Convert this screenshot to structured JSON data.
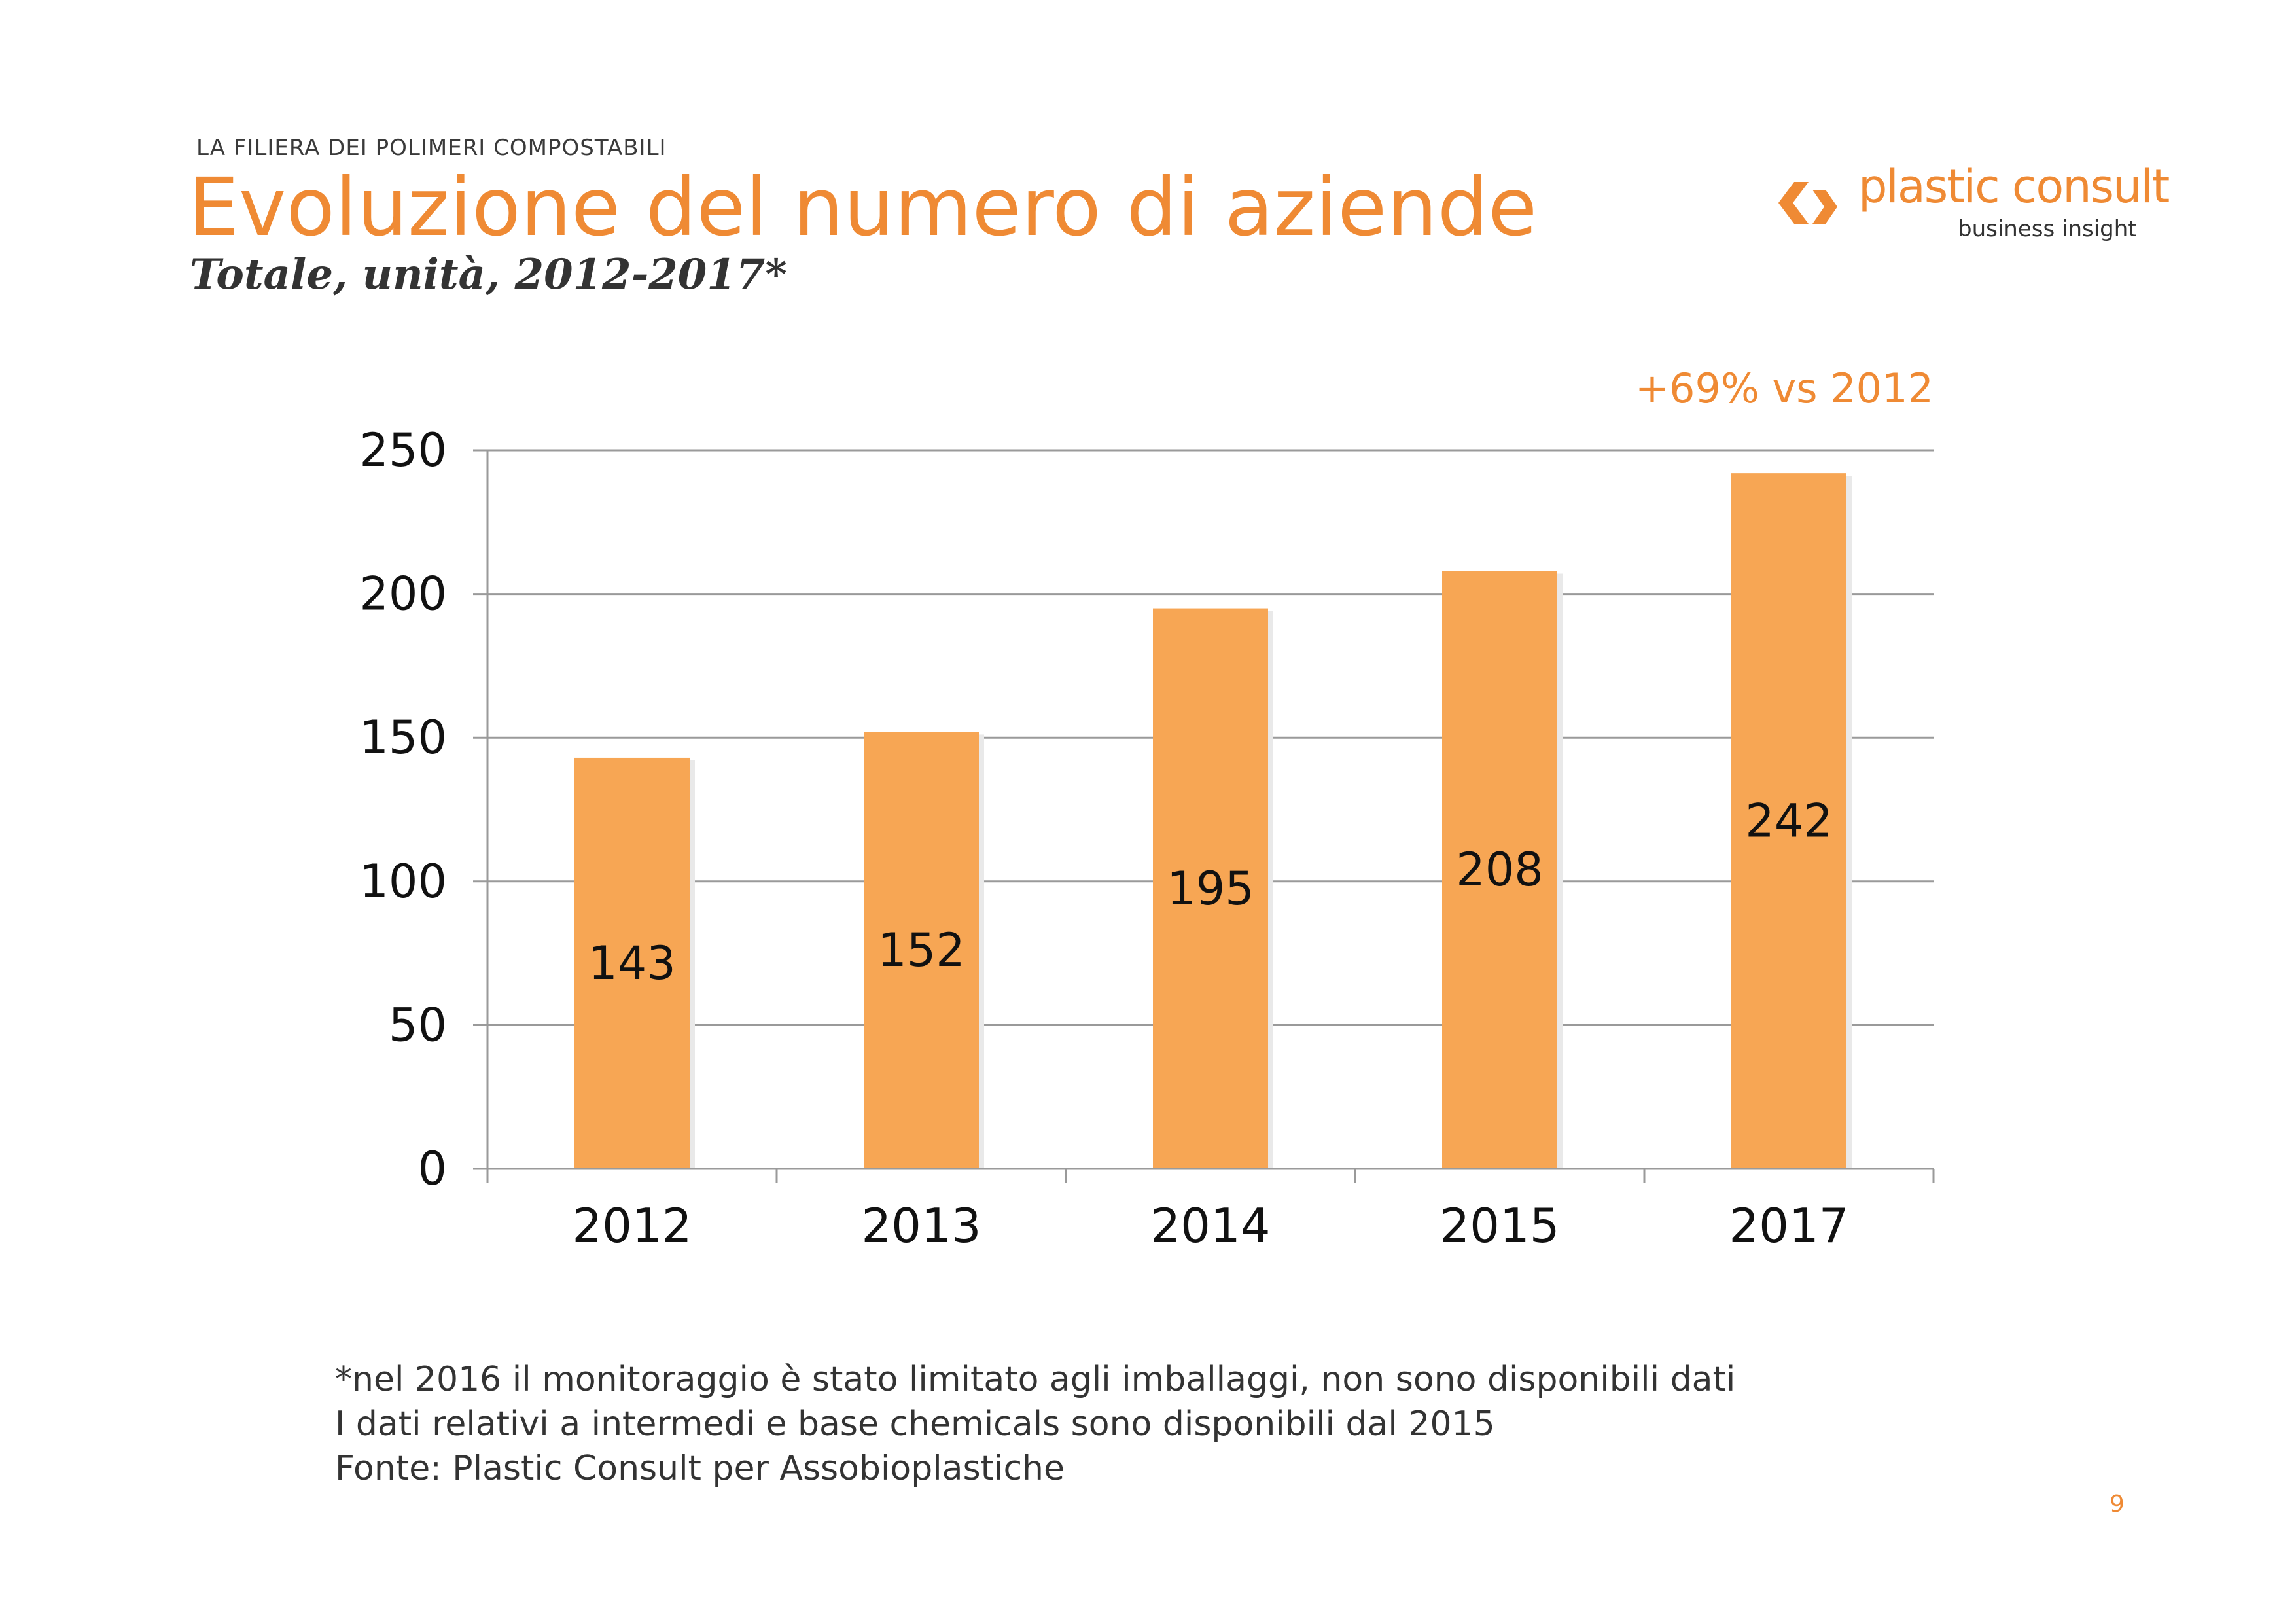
{
  "header": {
    "kicker": "LA FILIERA DEI POLIMERI COMPOSTABILI",
    "title": "Evoluzione del numero di aziende",
    "subtitle": "Totale, unità, 2012-2017*"
  },
  "logo": {
    "name": "plastic consult",
    "tagline": "business insight",
    "icon": "chevron-logo-icon"
  },
  "colors": {
    "accent": "#ef8a34",
    "bar": "#f7a654",
    "grid": "#9a9a9a",
    "text": "#333333"
  },
  "chart_data": {
    "type": "bar",
    "categories": [
      "2012",
      "2013",
      "2014",
      "2015",
      "2017"
    ],
    "values": [
      143,
      152,
      195,
      208,
      242
    ],
    "data_labels": [
      "143",
      "152",
      "195",
      "208",
      "242"
    ],
    "title": "",
    "xlabel": "",
    "ylabel": "",
    "ylim": [
      0,
      250
    ],
    "yticks": [
      0,
      50,
      100,
      150,
      200,
      250
    ],
    "ytick_labels": [
      "0",
      "50",
      "100",
      "150",
      "200",
      "250"
    ],
    "grid": true,
    "legend": "none",
    "annotation": "+69% vs 2012"
  },
  "footnotes": [
    "*nel 2016 il monitoraggio è stato limitato agli imballaggi, non sono disponibili dati",
    "I dati relativi a intermedi e base chemicals sono disponibili dal 2015",
    "Fonte: Plastic Consult per Assobioplastiche"
  ],
  "page_number": "9"
}
